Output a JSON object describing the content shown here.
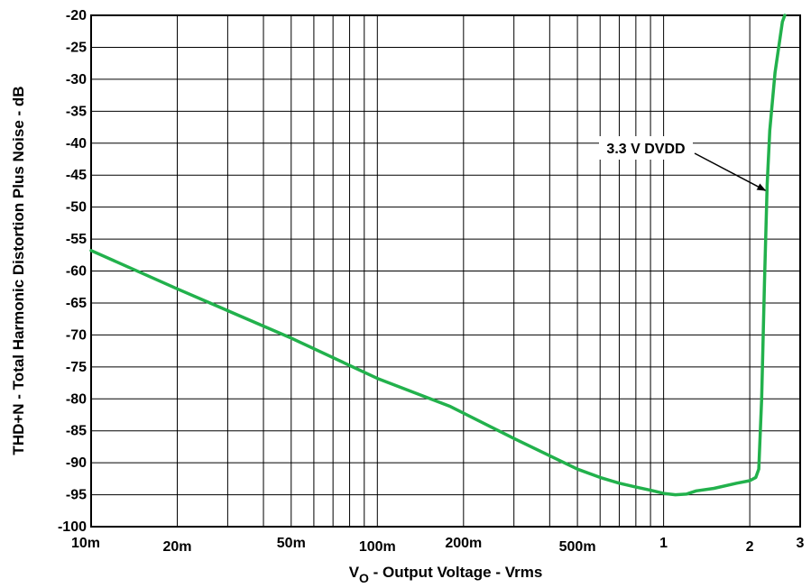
{
  "chart_data": {
    "type": "line",
    "title": "",
    "xlabel": "V",
    "xlabel_sub": "O",
    "xlabel_rest": " - Output Voltage - Vrms",
    "ylabel": "THD+N - Total Harmonic Distortion Plus Noise - dB",
    "xscale": "log",
    "xlim": [
      0.01,
      3
    ],
    "ylim": [
      -100,
      -20
    ],
    "grid": true,
    "x_tick_values": [
      0.01,
      0.02,
      0.05,
      0.1,
      0.2,
      0.5,
      1,
      2,
      3
    ],
    "x_tick_labels": [
      "10m",
      "20m",
      "50m",
      "100m",
      "200m",
      "500m",
      "1",
      "2",
      "3"
    ],
    "y_tick_values": [
      -20,
      -25,
      -30,
      -35,
      -40,
      -45,
      -50,
      -55,
      -60,
      -65,
      -70,
      -75,
      -80,
      -85,
      -90,
      -95,
      -100
    ],
    "y_tick_labels": [
      "-20",
      "-25",
      "-30",
      "-35",
      "-40",
      "-45",
      "-50",
      "-55",
      "-60",
      "-65",
      "-70",
      "-75",
      "-80",
      "-85",
      "-90",
      "-95",
      "-100"
    ],
    "series": [
      {
        "name": "3.3 V DVDD",
        "color": "#22b14c",
        "x": [
          0.01,
          0.02,
          0.05,
          0.1,
          0.18,
          0.3,
          0.5,
          0.6,
          0.7,
          0.8,
          0.9,
          1.0,
          1.1,
          1.2,
          1.3,
          1.5,
          1.8,
          2.0,
          2.1,
          2.15,
          2.2,
          2.25,
          2.3,
          2.35,
          2.45,
          2.6,
          2.65
        ],
        "y": [
          -56.8,
          -62.8,
          -70.5,
          -76.8,
          -81.2,
          -86.2,
          -91.0,
          -92.3,
          -93.2,
          -93.8,
          -94.3,
          -94.8,
          -95.0,
          -94.9,
          -94.4,
          -94.0,
          -93.2,
          -92.8,
          -92.3,
          -91.0,
          -80.0,
          -62.0,
          -46.5,
          -38.0,
          -29.0,
          -21.0,
          -19.8
        ]
      }
    ],
    "annotations": [
      {
        "text": "3.3 V DVDD",
        "x": 2.3,
        "y": -47.4
      }
    ]
  }
}
